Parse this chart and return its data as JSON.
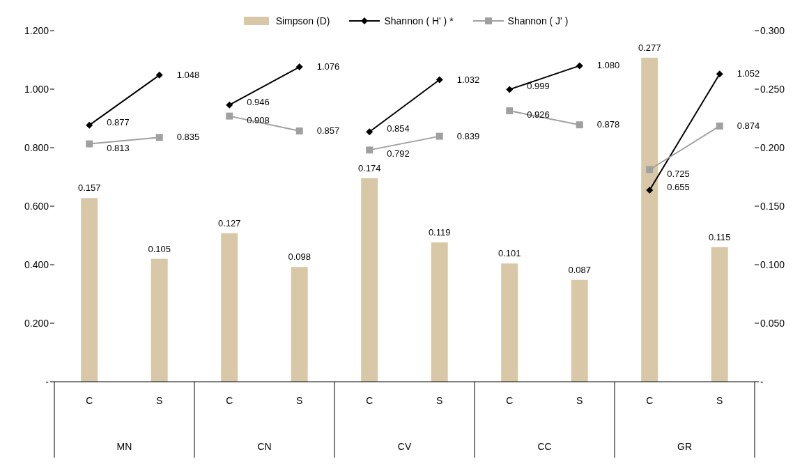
{
  "chart_data": {
    "type": "bar",
    "categories": [
      "C",
      "S",
      "C",
      "S",
      "C",
      "S",
      "C",
      "S",
      "C",
      "S"
    ],
    "annotations": [
      "MN",
      "CN",
      "CV",
      "CC",
      "GR"
    ],
    "series": [
      {
        "name": "Simpson (D)",
        "axis": "y2",
        "color": "#d8c8a8",
        "values": [
          0.157,
          0.105,
          0.127,
          0.098,
          0.174,
          0.119,
          0.101,
          0.087,
          0.277,
          0.115
        ],
        "value_labels": [
          "0.157",
          "0.105",
          "0.127",
          "0.098",
          "0.174",
          "0.119",
          "0.101",
          "0.087",
          "0.277",
          "0.115"
        ]
      },
      {
        "name": "Shannon ( H' ) *",
        "type": "line",
        "marker": "diamond",
        "color": "#000000",
        "values": [
          0.877,
          1.048,
          0.946,
          1.076,
          0.854,
          1.032,
          0.999,
          1.08,
          0.655,
          1.052
        ],
        "value_labels": [
          "0.877",
          "1.048",
          "0.946",
          "1.076",
          "0.854",
          "1.032",
          "0.999",
          "1.080",
          "0.655",
          "1.052"
        ]
      },
      {
        "name": "Shannon ( J' )",
        "type": "line",
        "marker": "square",
        "color": "#a0a0a0",
        "values": [
          0.813,
          0.835,
          0.908,
          0.857,
          0.792,
          0.839,
          0.926,
          0.878,
          0.725,
          0.874
        ],
        "value_labels": [
          "0.813",
          "0.835",
          "0.908",
          "0.857",
          "0.792",
          "0.839",
          "0.926",
          "0.878",
          "0.725",
          "0.874"
        ]
      }
    ],
    "ylim": [
      0,
      1.2
    ],
    "yticks": [
      {
        "value": 0,
        "label": "-"
      },
      {
        "value": 0.2,
        "label": "0.200"
      },
      {
        "value": 0.4,
        "label": "0.400"
      },
      {
        "value": 0.6,
        "label": "0.600"
      },
      {
        "value": 0.8,
        "label": "0.800"
      },
      {
        "value": 1.0,
        "label": "1.000"
      },
      {
        "value": 1.2,
        "label": "1.200"
      }
    ],
    "y2lim": [
      0,
      0.3
    ],
    "y2ticks": [
      {
        "value": 0,
        "label": "-"
      },
      {
        "value": 0.05,
        "label": "0.050"
      },
      {
        "value": 0.1,
        "label": "0.100"
      },
      {
        "value": 0.15,
        "label": "0.150"
      },
      {
        "value": 0.2,
        "label": "0.200"
      },
      {
        "value": 0.25,
        "label": "0.250"
      },
      {
        "value": 0.3,
        "label": "0.300"
      }
    ],
    "grid": false,
    "legend": "top"
  }
}
